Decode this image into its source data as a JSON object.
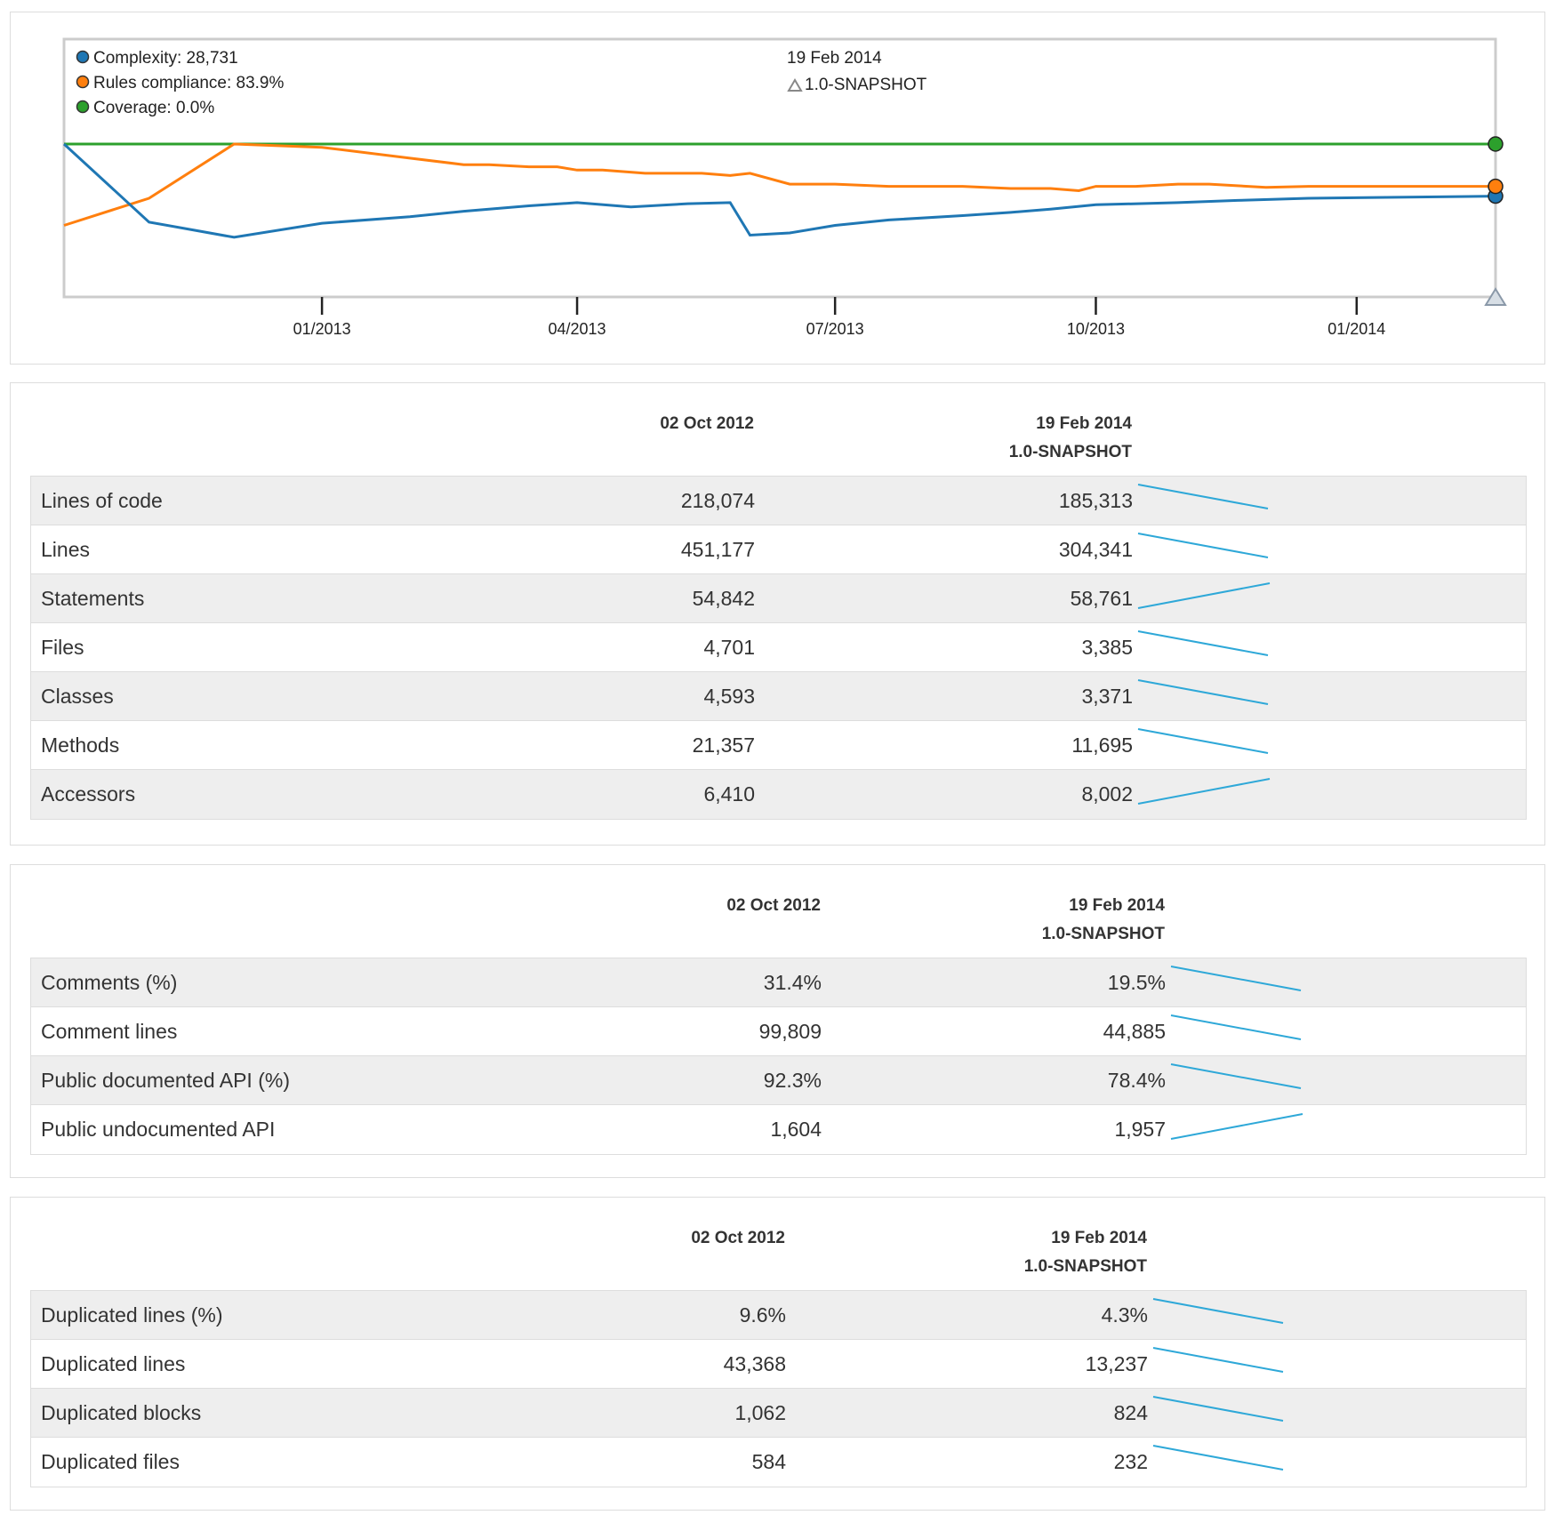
{
  "timeline": {
    "legend": [
      {
        "label": "Complexity: 28,731",
        "color": "#1f77b4"
      },
      {
        "label": "Rules compliance: 83.9%",
        "color": "#ff7f0e"
      },
      {
        "label": "Coverage: 0.0%",
        "color": "#2ca02c"
      }
    ],
    "selected_date": "19 Feb 2014",
    "selected_version": "1.0-SNAPSHOT",
    "version_marker_icon": "triangle-icon",
    "x_ticks": [
      "01/2013",
      "04/2013",
      "07/2013",
      "10/2013",
      "01/2014"
    ]
  },
  "chart_data": {
    "type": "line",
    "x_range": [
      "2012-10-02",
      "2014-02-19"
    ],
    "x_ticks": [
      "01/2013",
      "04/2013",
      "07/2013",
      "10/2013",
      "01/2014"
    ],
    "y_normalized_per_series": true,
    "series": [
      {
        "name": "Coverage",
        "color": "#2ca02c",
        "points": [
          [
            "2012-10-02",
            1.0
          ],
          [
            "2014-02-19",
            1.0
          ]
        ]
      },
      {
        "name": "Rules compliance",
        "color": "#ff7f0e",
        "points": [
          [
            "2012-10-02",
            0.25
          ],
          [
            "2012-11-01",
            0.5
          ],
          [
            "2012-12-01",
            1.0
          ],
          [
            "2013-01-01",
            0.97
          ],
          [
            "2013-02-01",
            0.87
          ],
          [
            "2013-02-20",
            0.81
          ],
          [
            "2013-03-01",
            0.81
          ],
          [
            "2013-03-15",
            0.79
          ],
          [
            "2013-03-25",
            0.79
          ],
          [
            "2013-04-01",
            0.76
          ],
          [
            "2013-04-10",
            0.76
          ],
          [
            "2013-04-25",
            0.73
          ],
          [
            "2013-05-15",
            0.73
          ],
          [
            "2013-05-25",
            0.71
          ],
          [
            "2013-06-01",
            0.73
          ],
          [
            "2013-06-15",
            0.63
          ],
          [
            "2013-07-01",
            0.63
          ],
          [
            "2013-07-20",
            0.61
          ],
          [
            "2013-08-15",
            0.61
          ],
          [
            "2013-09-01",
            0.59
          ],
          [
            "2013-09-15",
            0.59
          ],
          [
            "2013-09-25",
            0.57
          ],
          [
            "2013-10-01",
            0.61
          ],
          [
            "2013-10-15",
            0.61
          ],
          [
            "2013-10-30",
            0.63
          ],
          [
            "2013-11-10",
            0.63
          ],
          [
            "2013-11-30",
            0.6
          ],
          [
            "2013-12-15",
            0.61
          ],
          [
            "2014-02-19",
            0.61
          ]
        ]
      },
      {
        "name": "Complexity",
        "color": "#1f77b4",
        "points": [
          [
            "2012-10-02",
            1.0
          ],
          [
            "2012-11-01",
            0.28
          ],
          [
            "2012-12-01",
            0.14
          ],
          [
            "2013-01-01",
            0.27
          ],
          [
            "2013-02-01",
            0.33
          ],
          [
            "2013-02-20",
            0.38
          ],
          [
            "2013-03-15",
            0.43
          ],
          [
            "2013-04-01",
            0.46
          ],
          [
            "2013-04-20",
            0.42
          ],
          [
            "2013-05-10",
            0.45
          ],
          [
            "2013-05-25",
            0.46
          ],
          [
            "2013-06-01",
            0.16
          ],
          [
            "2013-06-15",
            0.18
          ],
          [
            "2013-07-01",
            0.25
          ],
          [
            "2013-07-20",
            0.3
          ],
          [
            "2013-08-15",
            0.34
          ],
          [
            "2013-09-01",
            0.37
          ],
          [
            "2013-09-15",
            0.4
          ],
          [
            "2013-10-01",
            0.44
          ],
          [
            "2013-10-30",
            0.46
          ],
          [
            "2013-11-20",
            0.48
          ],
          [
            "2013-12-15",
            0.5
          ],
          [
            "2014-02-19",
            0.52
          ]
        ]
      }
    ]
  },
  "sections": [
    {
      "col1": "02 Oct 2012",
      "col2_date": "19 Feb 2014",
      "col2_version": "1.0-SNAPSHOT",
      "rows": [
        {
          "name": "Lines of code",
          "v1": "218,074",
          "v2": "185,313",
          "trend": "down"
        },
        {
          "name": "Lines",
          "v1": "451,177",
          "v2": "304,341",
          "trend": "down"
        },
        {
          "name": "Statements",
          "v1": "54,842",
          "v2": "58,761",
          "trend": "up"
        },
        {
          "name": "Files",
          "v1": "4,701",
          "v2": "3,385",
          "trend": "down"
        },
        {
          "name": "Classes",
          "v1": "4,593",
          "v2": "3,371",
          "trend": "down"
        },
        {
          "name": "Methods",
          "v1": "21,357",
          "v2": "11,695",
          "trend": "down"
        },
        {
          "name": "Accessors",
          "v1": "6,410",
          "v2": "8,002",
          "trend": "up"
        }
      ]
    },
    {
      "col1": "02 Oct 2012",
      "col2_date": "19 Feb 2014",
      "col2_version": "1.0-SNAPSHOT",
      "rows": [
        {
          "name": "Comments (%)",
          "v1": "31.4%",
          "v2": "19.5%",
          "trend": "down"
        },
        {
          "name": "Comment lines",
          "v1": "99,809",
          "v2": "44,885",
          "trend": "down"
        },
        {
          "name": "Public documented API (%)",
          "v1": "92.3%",
          "v2": "78.4%",
          "trend": "down"
        },
        {
          "name": "Public undocumented API",
          "v1": "1,604",
          "v2": "1,957",
          "trend": "up"
        }
      ]
    },
    {
      "col1": "02 Oct 2012",
      "col2_date": "19 Feb 2014",
      "col2_version": "1.0-SNAPSHOT",
      "rows": [
        {
          "name": "Duplicated lines (%)",
          "v1": "9.6%",
          "v2": "4.3%",
          "trend": "down"
        },
        {
          "name": "Duplicated lines",
          "v1": "43,368",
          "v2": "13,237",
          "trend": "down"
        },
        {
          "name": "Duplicated blocks",
          "v1": "1,062",
          "v2": "824",
          "trend": "down"
        },
        {
          "name": "Duplicated files",
          "v1": "584",
          "v2": "232",
          "trend": "down"
        }
      ]
    }
  ],
  "spark_color": "#2ea8d8"
}
